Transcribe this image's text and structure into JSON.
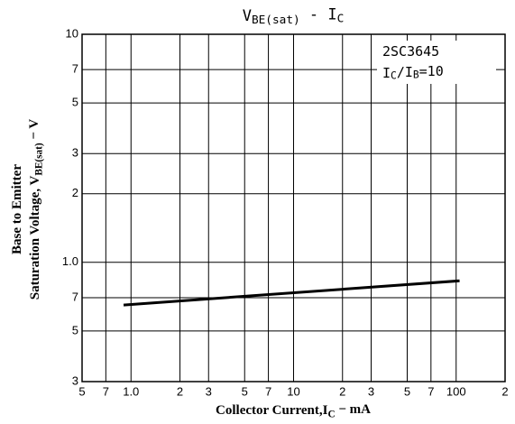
{
  "chart_data": {
    "type": "line",
    "title": [
      {
        "text": "V"
      },
      {
        "text": "BE(sat)",
        "sub": true
      },
      {
        "text": " - I"
      },
      {
        "text": "C",
        "sub": true
      }
    ],
    "ylabel": [
      [
        {
          "text": "Base to Emitter"
        }
      ],
      [
        {
          "text": "Saturation Voltage, V"
        },
        {
          "text": "BE(sat)",
          "sub": true
        },
        {
          "text": " − V"
        }
      ]
    ],
    "xlabel": [
      {
        "text": "Collector Current,I"
      },
      {
        "text": "C",
        "sub": true
      },
      {
        "text": " − mA"
      }
    ],
    "annotations": [
      [
        {
          "text": "2SC3645"
        }
      ],
      [
        {
          "text": "I"
        },
        {
          "text": "C",
          "sub": true
        },
        {
          "text": "∕I"
        },
        {
          "text": "B",
          "sub": true
        },
        {
          "text": "=10"
        }
      ]
    ],
    "xscale": "log",
    "yscale": "log",
    "grid": true,
    "xlim": [
      0.5,
      200
    ],
    "ylim": [
      0.3,
      10
    ],
    "xticks": [
      {
        "value": 0.5,
        "label": "5"
      },
      {
        "value": 0.7,
        "label": "7"
      },
      {
        "value": 1,
        "label": "1.0"
      },
      2,
      3,
      5,
      7,
      10,
      {
        "value": 20,
        "label": "2"
      },
      {
        "value": 30,
        "label": "3"
      },
      {
        "value": 50,
        "label": "5"
      },
      {
        "value": 70,
        "label": "7"
      },
      100,
      {
        "value": 200,
        "label": "2"
      }
    ],
    "yticks": [
      {
        "value": 0.3,
        "label": "3"
      },
      {
        "value": 0.5,
        "label": "5"
      },
      {
        "value": 0.7,
        "label": "7"
      },
      {
        "value": 1,
        "label": "1.0"
      },
      2,
      3,
      5,
      7,
      10
    ],
    "series": [
      {
        "color": "#000000",
        "x": [
          0.9,
          105
        ],
        "values": [
          0.65,
          0.83
        ]
      }
    ]
  }
}
